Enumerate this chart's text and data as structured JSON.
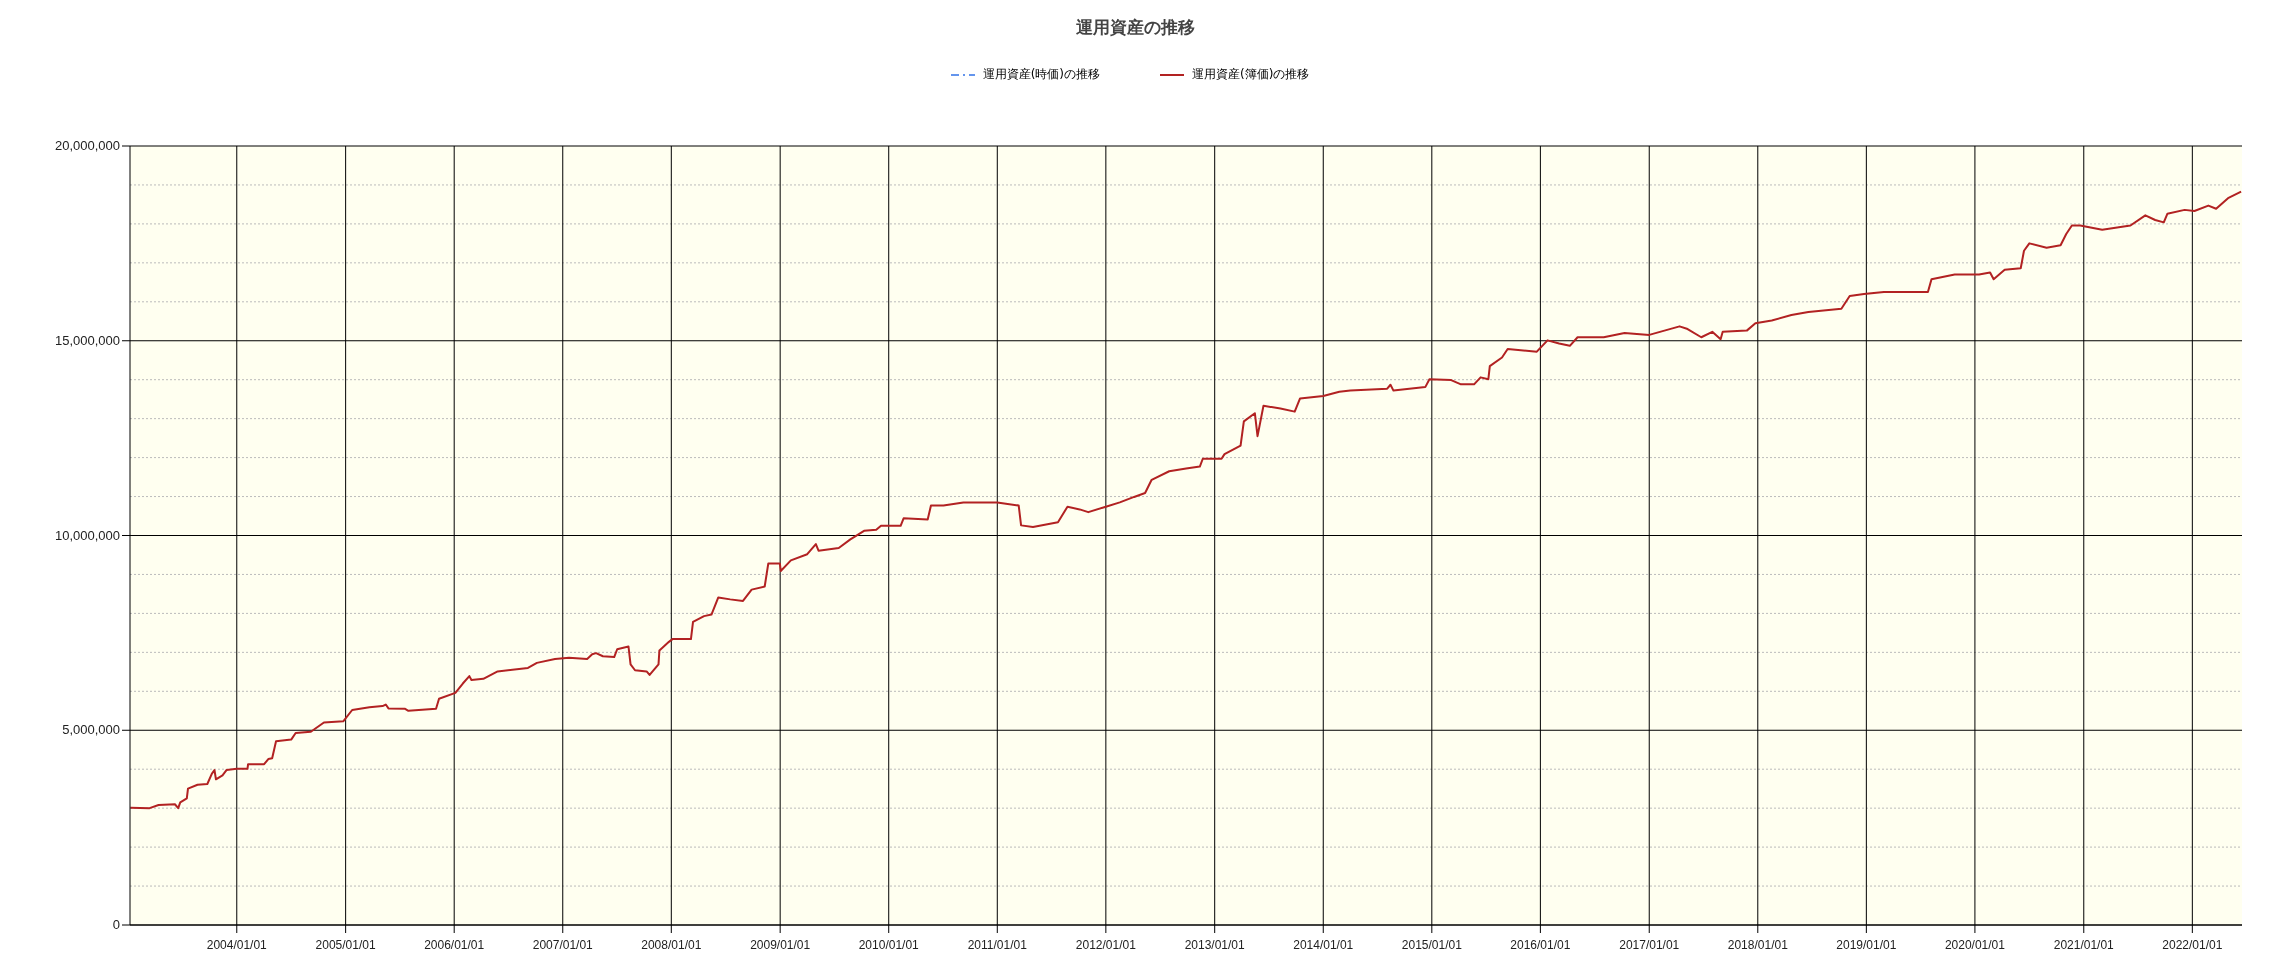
{
  "chart_data": {
    "type": "line",
    "title": "運用資産の推移",
    "legend": "top",
    "grid": true,
    "marker": "none",
    "xlim": [
      "2003-01-07",
      "2022-06-17"
    ],
    "ylim": [
      0,
      20000000
    ],
    "yticks": [
      0,
      {
        "value": 1000000,
        "label": null
      },
      {
        "value": 2000000,
        "label": null
      },
      {
        "value": 3000000,
        "label": null
      },
      {
        "value": 4000000,
        "label": null
      },
      {
        "value": 5000000,
        "label": "5,000,000"
      },
      {
        "value": 6000000,
        "label": null
      },
      {
        "value": 7000000,
        "label": null
      },
      {
        "value": 8000000,
        "label": null
      },
      {
        "value": 9000000,
        "label": null
      },
      {
        "value": 10000000,
        "label": "10,000,000"
      },
      {
        "value": 11000000,
        "label": null
      },
      {
        "value": 12000000,
        "label": null
      },
      {
        "value": 13000000,
        "label": null
      },
      {
        "value": 14000000,
        "label": null
      },
      {
        "value": 15000000,
        "label": "15,000,000"
      },
      {
        "value": 16000000,
        "label": null
      },
      {
        "value": 17000000,
        "label": null
      },
      {
        "value": 18000000,
        "label": null
      },
      {
        "value": 19000000,
        "label": null
      },
      {
        "value": 20000000,
        "label": "20,000,000"
      }
    ],
    "xticks": [
      {
        "value": "2004-01-01",
        "label": "2004/01/01"
      },
      {
        "value": "2005-01-01",
        "label": "2005/01/01"
      },
      {
        "value": "2006-01-01",
        "label": "2006/01/01"
      },
      {
        "value": "2007-01-01",
        "label": "2007/01/01"
      },
      {
        "value": "2008-01-01",
        "label": "2008/01/01"
      },
      {
        "value": "2009-01-01",
        "label": "2009/01/01"
      },
      {
        "value": "2010-01-01",
        "label": "2010/01/01"
      },
      {
        "value": "2011-01-01",
        "label": "2011/01/01"
      },
      {
        "value": "2012-01-01",
        "label": "2012/01/01"
      },
      {
        "value": "2013-01-01",
        "label": "2013/01/01"
      },
      {
        "value": "2014-01-01",
        "label": "2014/01/01"
      },
      {
        "value": "2015-01-01",
        "label": "2015/01/01"
      },
      {
        "value": "2016-01-01",
        "label": "2016/01/01"
      },
      {
        "value": "2017-01-01",
        "label": "2017/01/01"
      },
      {
        "value": "2018-01-01",
        "label": "2018/01/01"
      },
      {
        "value": "2019-01-01",
        "label": "2019/01/01"
      },
      {
        "value": "2020-01-01",
        "label": "2020/01/01"
      },
      {
        "value": "2021-01-01",
        "label": "2021/01/01"
      },
      {
        "value": "2022-01-01",
        "label": "2022/01/01"
      }
    ],
    "x": [
      "2003-01-08",
      "2003-03-14",
      "2003-04-13",
      "2003-06-07",
      "2003-06-18",
      "2003-06-25",
      "2003-07-17",
      "2003-07-21",
      "2003-08-22",
      "2003-09-24",
      "2003-10-09",
      "2003-10-18",
      "2003-10-23",
      "2003-11-14",
      "2003-11-28",
      "2004-01-01",
      "2004-02-06",
      "2004-02-08",
      "2004-04-02",
      "2004-04-16",
      "2004-04-29",
      "2004-05-12",
      "2004-07-02",
      "2004-07-17",
      "2004-09-06",
      "2004-10-20",
      "2004-12-24",
      "2005-01-23",
      "2005-03-22",
      "2005-05-05",
      "2005-05-16",
      "2005-05-25",
      "2005-07-20",
      "2005-07-31",
      "2005-11-01",
      "2005-11-11",
      "2006-01-05",
      "2006-01-30",
      "2006-02-21",
      "2006-02-28",
      "2006-04-09",
      "2006-05-27",
      "2006-09-06",
      "2006-10-06",
      "2006-12-06",
      "2007-01-22",
      "2007-03-24",
      "2007-04-10",
      "2007-04-23",
      "2007-05-16",
      "2007-06-23",
      "2007-07-03",
      "2007-08-10",
      "2007-08-17",
      "2007-09-01",
      "2007-10-10",
      "2007-10-20",
      "2007-11-19",
      "2007-11-22",
      "2007-12-24",
      "2008-01-05",
      "2008-03-07",
      "2008-03-14",
      "2008-04-20",
      "2008-05-15",
      "2008-06-07",
      "2008-07-17",
      "2008-08-29",
      "2008-09-27",
      "2008-11-10",
      "2008-11-22",
      "2008-12-31",
      "2009-01-03",
      "2009-02-06",
      "2009-04-02",
      "2009-05-01",
      "2009-05-10",
      "2009-07-17",
      "2009-08-25",
      "2009-09-09",
      "2009-10-10",
      "2009-11-20",
      "2009-12-06",
      "2010-02-10",
      "2010-02-20",
      "2010-05-12",
      "2010-05-23",
      "2010-07-04",
      "2010-09-09",
      "2011-01-01",
      "2011-03-14",
      "2011-03-22",
      "2011-05-01",
      "2011-07-24",
      "2011-08-25",
      "2011-10-05",
      "2011-11-03",
      "2012-01-01",
      "2012-02-17",
      "2012-04-05",
      "2012-05-12",
      "2012-06-03",
      "2012-08-01",
      "2012-09-27",
      "2012-11-12",
      "2012-11-22",
      "2013-01-24",
      "2013-02-03",
      "2013-03-29",
      "2013-04-09",
      "2013-05-16",
      "2013-05-25",
      "2013-06-14",
      "2013-08-10",
      "2013-09-27",
      "2013-10-15",
      "2014-01-01",
      "2014-02-24",
      "2014-04-02",
      "2014-08-04",
      "2014-08-15",
      "2014-08-25",
      "2014-12-10",
      "2014-12-24",
      "2015-03-07",
      "2015-04-09",
      "2015-05-23",
      "2015-06-14",
      "2015-07-10",
      "2015-07-15",
      "2015-08-25",
      "2015-09-13",
      "2015-12-20",
      "2016-01-25",
      "2016-03-04",
      "2016-04-09",
      "2016-05-05",
      "2016-08-01",
      "2016-10-10",
      "2017-01-01",
      "2017-04-13",
      "2017-05-10",
      "2017-06-25",
      "2017-08-01",
      "2017-08-29",
      "2017-09-05",
      "2017-11-25",
      "2017-12-24",
      "2018-02-17",
      "2018-04-24",
      "2018-06-20",
      "2018-10-09",
      "2018-11-06",
      "2018-12-24",
      "2019-03-01",
      "2019-07-27",
      "2019-08-08",
      "2019-10-25",
      "2020-01-15",
      "2020-02-21",
      "2020-03-04",
      "2020-04-10",
      "2020-06-03",
      "2020-06-14",
      "2020-07-02",
      "2020-08-29",
      "2020-10-15",
      "2020-11-03",
      "2020-11-22",
      "2020-12-20",
      "2021-03-04",
      "2021-06-07",
      "2021-07-27",
      "2021-08-29",
      "2021-09-27",
      "2021-10-09",
      "2021-12-06",
      "2022-01-08",
      "2022-02-24",
      "2022-03-22",
      "2022-05-01",
      "2022-06-14"
    ],
    "series": [
      {
        "name": "運用資産(時価)の推移",
        "color": "#6495ed",
        "line_style": "dashed",
        "values": [
          null,
          null,
          null,
          null,
          null,
          null,
          null,
          null,
          null,
          null,
          null,
          null,
          null,
          null,
          null,
          null,
          null,
          null,
          null,
          null,
          null,
          null,
          null,
          null,
          null,
          null,
          null,
          null,
          null,
          null,
          null,
          null,
          null,
          null,
          null,
          null,
          null,
          null,
          null,
          null,
          null,
          null,
          null,
          null,
          null,
          null,
          null,
          null,
          null,
          null,
          null,
          null,
          null,
          null,
          null,
          null,
          null,
          null,
          null,
          null,
          null,
          null,
          null,
          null,
          null,
          null,
          null,
          null,
          null,
          null,
          null,
          null,
          null,
          null,
          null,
          null,
          null,
          null,
          null,
          null,
          null,
          null,
          null,
          null,
          null,
          null,
          null,
          null,
          null,
          null,
          null,
          null,
          null,
          null,
          null,
          null,
          null,
          null,
          null,
          null,
          null,
          null,
          null,
          null,
          null,
          null,
          null,
          null,
          null,
          null,
          null,
          null,
          null,
          null,
          null,
          null,
          null,
          null,
          null,
          null,
          null,
          null,
          null,
          null,
          null,
          null,
          null,
          null,
          null,
          null,
          null,
          null,
          null,
          null,
          null,
          null,
          null,
          null,
          null,
          null,
          null,
          null,
          null,
          null,
          null,
          null,
          null,
          null,
          null,
          null,
          null,
          null,
          null,
          null,
          null,
          null,
          null,
          null,
          null,
          null,
          null,
          null,
          null,
          null,
          null,
          null,
          null,
          null,
          null,
          null,
          null,
          null,
          null,
          null,
          null,
          null,
          null,
          null,
          null,
          null,
          null,
          null
        ]
      },
      {
        "name": "運用資産(簿価)の推移",
        "color": "#b22222",
        "line_style": "solid",
        "values": [
          3010000,
          3000000,
          3080000,
          3100000,
          3000000,
          3150000,
          3250000,
          3500000,
          3600000,
          3620000,
          3880000,
          3980000,
          3740000,
          3840000,
          3980000,
          4010000,
          4010000,
          4130000,
          4130000,
          4260000,
          4280000,
          4720000,
          4760000,
          4930000,
          4960000,
          5200000,
          5230000,
          5520000,
          5590000,
          5620000,
          5660000,
          5560000,
          5550000,
          5500000,
          5550000,
          5810000,
          5960000,
          6200000,
          6390000,
          6290000,
          6320000,
          6510000,
          6600000,
          6730000,
          6830000,
          6860000,
          6830000,
          6950000,
          6980000,
          6900000,
          6880000,
          7080000,
          7150000,
          6690000,
          6540000,
          6510000,
          6420000,
          6690000,
          7050000,
          7270000,
          7340000,
          7340000,
          7780000,
          7930000,
          7970000,
          8410000,
          8360000,
          8320000,
          8610000,
          8690000,
          9280000,
          9280000,
          9090000,
          9360000,
          9520000,
          9780000,
          9610000,
          9680000,
          9900000,
          9970000,
          10120000,
          10150000,
          10250000,
          10250000,
          10440000,
          10410000,
          10770000,
          10770000,
          10850000,
          10850000,
          10770000,
          10260000,
          10220000,
          10340000,
          10740000,
          10670000,
          10600000,
          10740000,
          10850000,
          10990000,
          11090000,
          11430000,
          11650000,
          11720000,
          11770000,
          11970000,
          11970000,
          12090000,
          12310000,
          12930000,
          13140000,
          12550000,
          13330000,
          13260000,
          13180000,
          13520000,
          13580000,
          13690000,
          13720000,
          13770000,
          13870000,
          13720000,
          13810000,
          14010000,
          13990000,
          13880000,
          13880000,
          14060000,
          14010000,
          14350000,
          14570000,
          14790000,
          14720000,
          15010000,
          14930000,
          14870000,
          15090000,
          15090000,
          15200000,
          15150000,
          15370000,
          15300000,
          15090000,
          15230000,
          15040000,
          15230000,
          15260000,
          15450000,
          15520000,
          15660000,
          15740000,
          15820000,
          16150000,
          16200000,
          16250000,
          16250000,
          16580000,
          16700000,
          16700000,
          16750000,
          16580000,
          16820000,
          16860000,
          17310000,
          17500000,
          17390000,
          17450000,
          17740000,
          17960000,
          17960000,
          17850000,
          17960000,
          18220000,
          18100000,
          18040000,
          18260000,
          18360000,
          18330000,
          18470000,
          18390000,
          18660000,
          18830000
        ]
      }
    ]
  }
}
